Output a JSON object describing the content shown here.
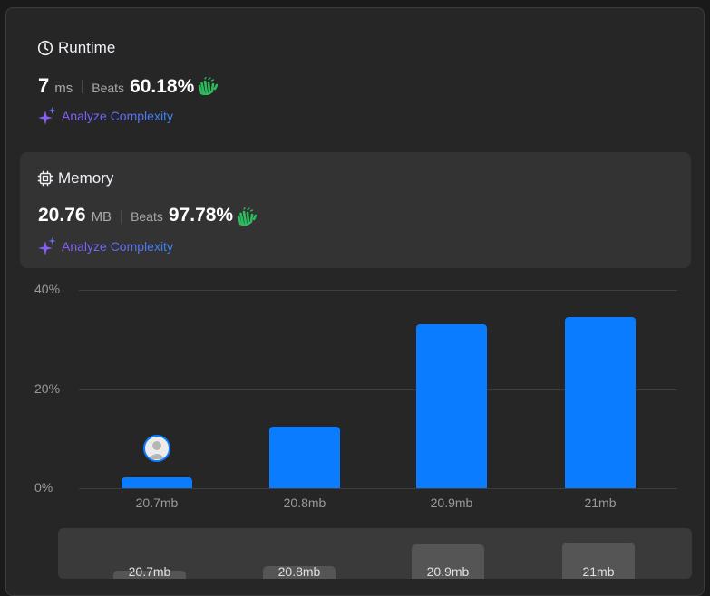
{
  "runtime": {
    "title": "Runtime",
    "value": "7",
    "unit": "ms",
    "beats_label": "Beats",
    "beats_value": "60.18%",
    "analyze_label": "Analyze Complexity"
  },
  "memory": {
    "title": "Memory",
    "value": "20.76",
    "unit": "MB",
    "beats_label": "Beats",
    "beats_value": "97.78%",
    "analyze_label": "Analyze Complexity"
  },
  "colors": {
    "bar": "#0a7cff",
    "beats_icon": "#2cbb5d",
    "analyze_gradient_start": "#8b5cf6",
    "analyze_gradient_end": "#3b82f6"
  },
  "chart_data": {
    "type": "bar",
    "categories": [
      "20.7mb",
      "20.8mb",
      "20.9mb",
      "21mb"
    ],
    "values": [
      2.2,
      12.5,
      33,
      34.5
    ],
    "yticks": [
      "0%",
      "20%",
      "40%"
    ],
    "ylim": [
      0,
      40
    ],
    "grid": true,
    "user_marker_category": "20.7mb"
  },
  "minimap": {
    "labels": [
      "20.7mb",
      "20.8mb",
      "20.9mb",
      "21mb"
    ]
  }
}
